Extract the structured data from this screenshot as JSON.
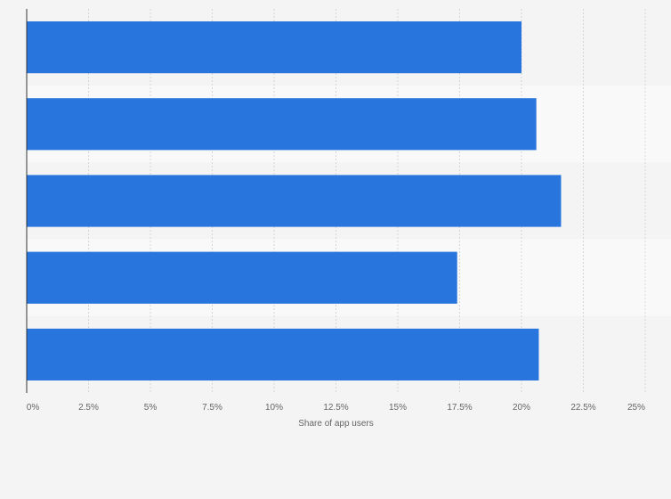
{
  "chart_data": {
    "type": "bar",
    "orientation": "horizontal",
    "categories": [
      "",
      "",
      "",
      "",
      ""
    ],
    "values": [
      20.0,
      20.6,
      21.6,
      17.4,
      20.7
    ],
    "xlabel": "Share of app users",
    "ylabel": "",
    "xlim": [
      0,
      25
    ],
    "ticks": [
      {
        "value": 0,
        "label": "0%"
      },
      {
        "value": 2.5,
        "label": "2.5%"
      },
      {
        "value": 5,
        "label": "5%"
      },
      {
        "value": 7.5,
        "label": "7.5%"
      },
      {
        "value": 10,
        "label": "10%"
      },
      {
        "value": 12.5,
        "label": "12.5%"
      },
      {
        "value": 15,
        "label": "15%"
      },
      {
        "value": 17.5,
        "label": "17.5%"
      },
      {
        "value": 20,
        "label": "20%"
      },
      {
        "value": 22.5,
        "label": "22.5%"
      },
      {
        "value": 25,
        "label": "25%"
      }
    ],
    "grid": true,
    "legend": "none",
    "colors": {
      "bar": "#2876dd",
      "band_light": "#f9f9f9",
      "band_dark": "#f4f4f4",
      "gridline": "#d6d6d6",
      "axis": "#333333"
    }
  }
}
